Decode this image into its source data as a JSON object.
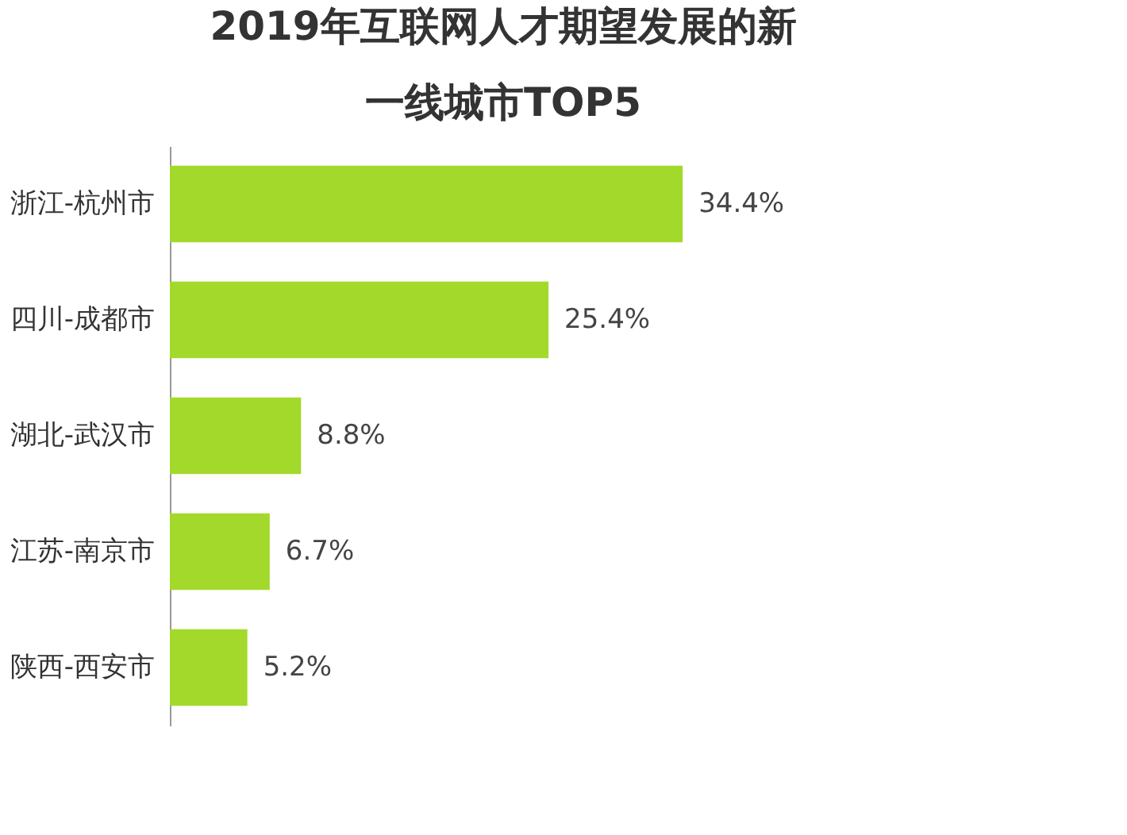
{
  "chart_data": {
    "type": "bar",
    "orientation": "horizontal",
    "title": "2019年互联网人才期望发展的新一线城市TOP5",
    "categories": [
      "浙江-杭州市",
      "四川-成都市",
      "湖北-武汉市",
      "江苏-南京市",
      "陕西-西安市"
    ],
    "values": [
      34.4,
      25.4,
      8.8,
      6.7,
      5.2
    ],
    "value_labels": [
      "34.4%",
      "25.4%",
      "8.8%",
      "6.7%",
      "5.2%"
    ],
    "color": "#a3d92b",
    "grid": false
  }
}
